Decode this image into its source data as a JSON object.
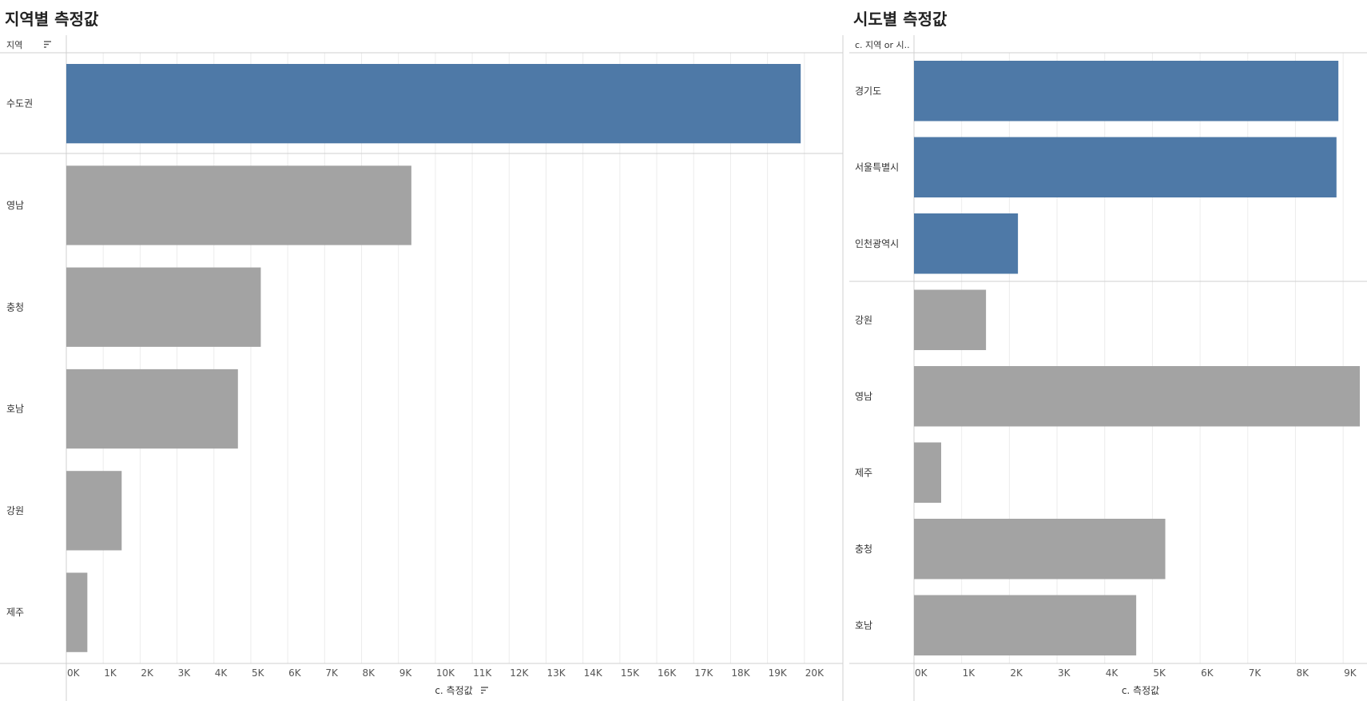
{
  "dashboard": {
    "left_title": "지역별 측정값",
    "right_title": "시도별 측정값"
  },
  "chart_data": [
    {
      "type": "bar",
      "orientation": "horizontal",
      "title": "지역별 측정값",
      "row_header": "지역",
      "xlabel": "c. 측정값",
      "xlim": [
        0,
        21000
      ],
      "tick_values": [
        0,
        1000,
        2000,
        3000,
        4000,
        5000,
        6000,
        7000,
        8000,
        9000,
        10000,
        11000,
        12000,
        13000,
        14000,
        15000,
        16000,
        17000,
        18000,
        19000,
        20000
      ],
      "tick_labels": [
        "0K",
        "1K",
        "2K",
        "3K",
        "4K",
        "5K",
        "6K",
        "7K",
        "8K",
        "9K",
        "10K",
        "11K",
        "12K",
        "13K",
        "14K",
        "15K",
        "16K",
        "17K",
        "18K",
        "19K",
        "20K"
      ],
      "grid": true,
      "groups": [
        {
          "categories": [
            "수도권"
          ],
          "values": [
            19900
          ],
          "color": "#4e79a7"
        },
        {
          "categories": [
            "영남",
            "충청",
            "호남",
            "강원",
            "제주"
          ],
          "values": [
            9350,
            5270,
            4650,
            1500,
            570
          ],
          "color": "#a3a3a3"
        }
      ]
    },
    {
      "type": "bar",
      "orientation": "horizontal",
      "title": "시도별 측정값",
      "row_header": "c. 지역 or 시..",
      "xlabel": "c. 측정값",
      "xlim": [
        0,
        9500
      ],
      "tick_values": [
        0,
        1000,
        2000,
        3000,
        4000,
        5000,
        6000,
        7000,
        8000,
        9000
      ],
      "tick_labels": [
        "0K",
        "1K",
        "2K",
        "3K",
        "4K",
        "5K",
        "6K",
        "7K",
        "8K",
        "9K"
      ],
      "grid": true,
      "groups": [
        {
          "categories": [
            "경기도",
            "서울특별시",
            "인천광역시"
          ],
          "values": [
            8900,
            8860,
            2180
          ],
          "color": "#4e79a7"
        },
        {
          "categories": [
            "강원",
            "영남",
            "제주",
            "충청",
            "호남"
          ],
          "values": [
            1510,
            9350,
            570,
            5270,
            4660
          ],
          "color": "#a3a3a3"
        }
      ]
    }
  ]
}
